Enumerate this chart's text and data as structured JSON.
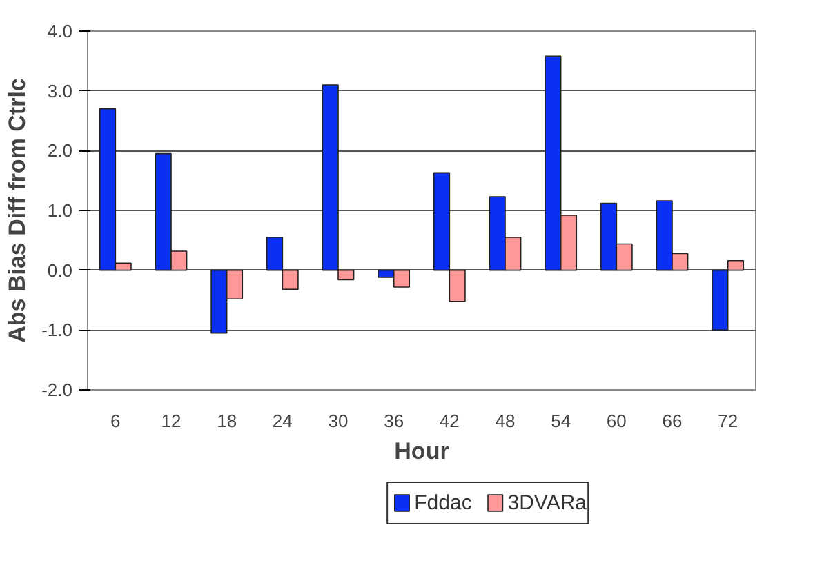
{
  "chart_data": {
    "type": "bar",
    "xlabel": "Hour",
    "ylabel": "Abs Bias Diff from Ctrlc",
    "categories": [
      "6",
      "12",
      "18",
      "24",
      "30",
      "36",
      "42",
      "48",
      "54",
      "60",
      "66",
      "72"
    ],
    "series": [
      {
        "name": "Fddac",
        "color": "#0a2ff5",
        "values": [
          2.7,
          1.95,
          -1.05,
          0.55,
          3.1,
          -0.12,
          1.63,
          1.23,
          3.58,
          1.12,
          1.16,
          -1.0
        ]
      },
      {
        "name": "3DVARa",
        "color": "#ff9999",
        "values": [
          0.12,
          0.32,
          -0.48,
          -0.32,
          -0.16,
          -0.28,
          -0.52,
          0.55,
          0.92,
          0.44,
          0.28,
          0.16
        ]
      }
    ],
    "ylim": [
      -2,
      4
    ],
    "yticks": [
      {
        "value": -2,
        "label": "-2.0"
      },
      {
        "value": -1,
        "label": "-1.0"
      },
      {
        "value": 0,
        "label": "0.0"
      },
      {
        "value": 1,
        "label": "1.0"
      },
      {
        "value": 2,
        "label": "2.0"
      },
      {
        "value": 3,
        "label": "3.0"
      },
      {
        "value": 4,
        "label": "4.0"
      }
    ],
    "grid": "y",
    "legend": "bottom"
  }
}
